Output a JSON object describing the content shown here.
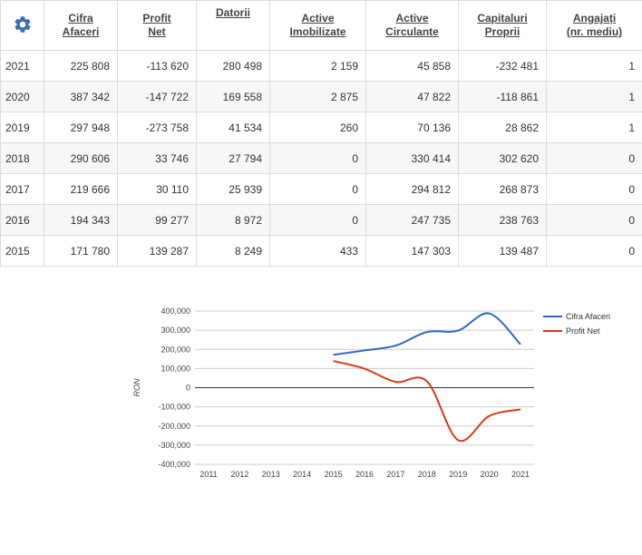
{
  "table": {
    "headers": [
      {
        "line1": "Cifra",
        "line2": "Afaceri"
      },
      {
        "line1": "Profit",
        "line2": "Net"
      },
      {
        "line1": "Datorii",
        "line2": ""
      },
      {
        "line1": "Active",
        "line2": "Imobilizate"
      },
      {
        "line1": "Active",
        "line2": "Circulante"
      },
      {
        "line1": "Capitaluri",
        "line2": "Proprii"
      },
      {
        "line1": "Angajați",
        "line2": "(nr. mediu)"
      }
    ],
    "rows": [
      {
        "year": "2021",
        "cells": [
          "225 808",
          "-113 620",
          "280 498",
          "2 159",
          "45 858",
          "-232 481",
          "1"
        ]
      },
      {
        "year": "2020",
        "cells": [
          "387 342",
          "-147 722",
          "169 558",
          "2 875",
          "47 822",
          "-118 861",
          "1"
        ]
      },
      {
        "year": "2019",
        "cells": [
          "297 948",
          "-273 758",
          "41 534",
          "260",
          "70 136",
          "28 862",
          "1"
        ]
      },
      {
        "year": "2018",
        "cells": [
          "290 606",
          "33 746",
          "27 794",
          "0",
          "330 414",
          "302 620",
          "0"
        ]
      },
      {
        "year": "2017",
        "cells": [
          "219 666",
          "30 110",
          "25 939",
          "0",
          "294 812",
          "268 873",
          "0"
        ]
      },
      {
        "year": "2016",
        "cells": [
          "194 343",
          "99 277",
          "8 972",
          "0",
          "247 735",
          "238 763",
          "0"
        ]
      },
      {
        "year": "2015",
        "cells": [
          "171 780",
          "139 287",
          "8 249",
          "433",
          "147 303",
          "139 487",
          "0"
        ]
      }
    ]
  },
  "chart_data": {
    "type": "line",
    "title": "",
    "xlabel": "",
    "ylabel": "RON",
    "categories": [
      "2011",
      "2012",
      "2013",
      "2014",
      "2015",
      "2016",
      "2017",
      "2018",
      "2019",
      "2020",
      "2021"
    ],
    "ylim": [
      -400000,
      400000
    ],
    "yticks": [
      400000,
      300000,
      200000,
      100000,
      0,
      -100000,
      -200000,
      -300000,
      -400000
    ],
    "ytick_labels": [
      "400,000",
      "300,000",
      "200,000",
      "100,000",
      "0",
      "-100,000",
      "-200,000",
      "-300,000",
      "-400,000"
    ],
    "grid": true,
    "legend_position": "right",
    "series": [
      {
        "name": "Cifra Afaceri",
        "color": "#3366cc",
        "values": [
          null,
          null,
          null,
          null,
          171780,
          194343,
          219666,
          290606,
          297948,
          387342,
          225808
        ]
      },
      {
        "name": "Profit Net",
        "color": "#dc3912",
        "values": [
          null,
          null,
          null,
          null,
          139287,
          99277,
          30110,
          33746,
          -273758,
          -147722,
          -113620
        ]
      }
    ]
  },
  "icons": {
    "settings": "gear-icon",
    "accent": "#3b6fb6"
  }
}
